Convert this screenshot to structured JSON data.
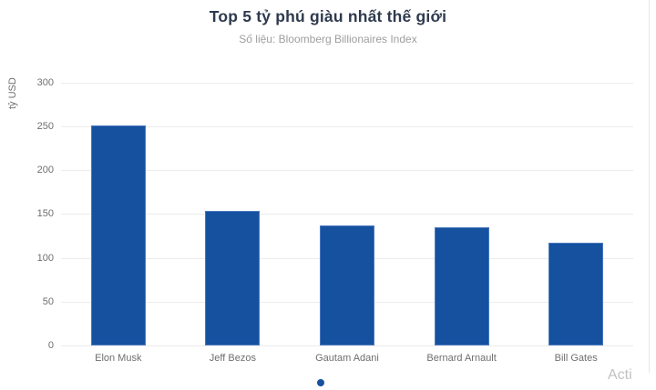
{
  "title": "Top 5 tỷ phú giàu nhất thế giới",
  "subtitle": "Số liệu: Bloomberg Billionaires Index",
  "watermark": "Acti",
  "colors": {
    "bar": "#15519f",
    "bar_border": "#4a79bd",
    "title_text": "#2e3a4e",
    "subtitle_text": "#9e9e9e",
    "axis_text": "#6f6f6f",
    "gridline": "#ececec",
    "legend_dot": "#15519f",
    "watermark_text": "#c2c2c2"
  },
  "legend": {
    "marker": "dot",
    "position": "bottom-center"
  },
  "chart_data": {
    "type": "bar",
    "title": "Top 5 tỷ phú giàu nhất thế giới",
    "subtitle": "Số liệu: Bloomberg Billionaires Index",
    "categories": [
      "Elon Musk",
      "Jeff Bezos",
      "Gautam Adani",
      "Bernard Arnault",
      "Bill Gates"
    ],
    "values": [
      251,
      153,
      137,
      135,
      117
    ],
    "xlabel": "",
    "ylabel": "tỷ USD",
    "ylim": [
      0,
      300
    ],
    "yticks": [
      0,
      50,
      100,
      150,
      200,
      250,
      300
    ],
    "grid": true,
    "legend_position": "bottom-center",
    "bar_color": "#15519f"
  }
}
